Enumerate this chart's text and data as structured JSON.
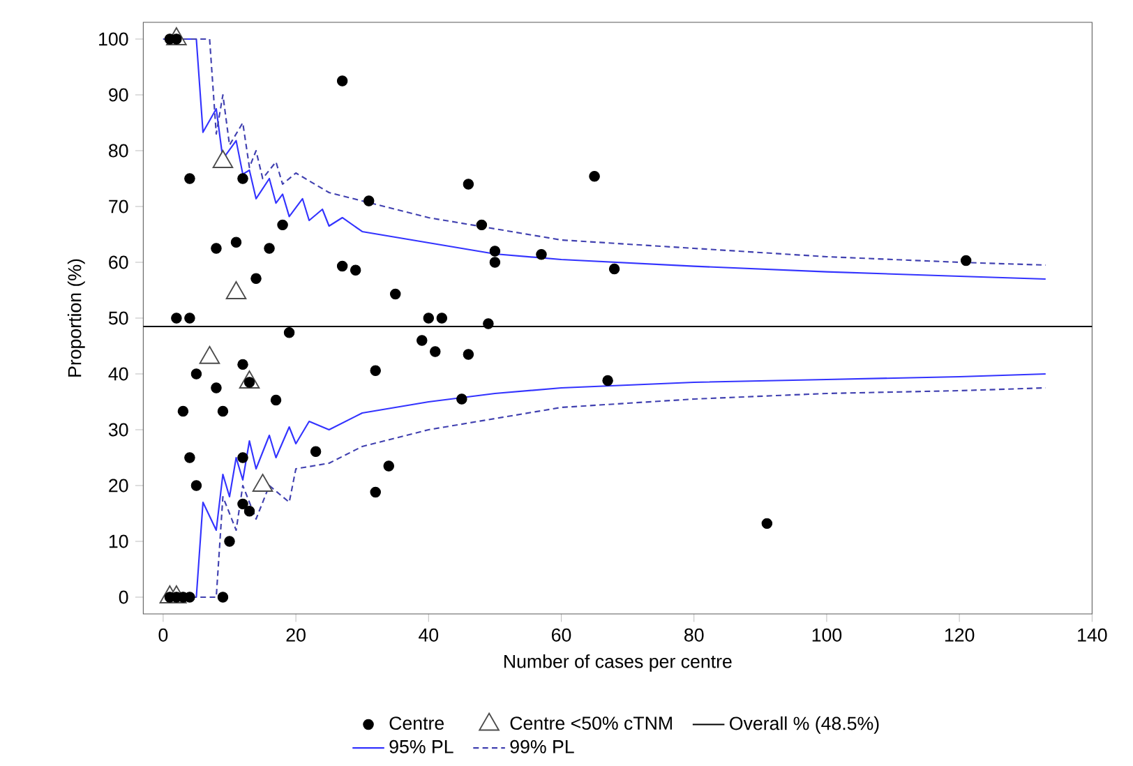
{
  "chart_data": {
    "type": "scatter",
    "xlabel": "Number of cases per centre",
    "ylabel": "Proportion (%)",
    "xlim": [
      -3,
      140
    ],
    "ylim": [
      -3,
      103
    ],
    "xticks": [
      0,
      20,
      40,
      60,
      80,
      100,
      120,
      140
    ],
    "yticks": [
      0,
      10,
      20,
      30,
      40,
      50,
      60,
      70,
      80,
      90,
      100
    ],
    "grid": false,
    "legend": "bottom",
    "ref_lines": [
      {
        "axis": "y",
        "value": 48.5,
        "label": "Overall % (48.5%)",
        "color": "#000000",
        "line_style": "solid"
      }
    ],
    "series": [
      {
        "name": "Centre",
        "marker": "circle",
        "color": "#000000",
        "x": [
          1,
          2,
          27,
          4,
          12,
          46,
          65,
          31,
          48,
          18,
          8,
          11,
          16,
          14,
          27,
          29,
          35,
          50,
          50,
          57,
          68,
          121,
          2,
          4,
          40,
          42,
          49,
          19,
          39,
          41,
          46,
          67,
          45,
          5,
          12,
          8,
          13,
          17,
          3,
          9,
          32,
          4,
          12,
          23,
          5,
          12,
          13,
          10,
          34,
          32,
          91,
          9,
          1,
          2,
          3,
          4
        ],
        "values": [
          100,
          100,
          92.5,
          75,
          75,
          74,
          75.4,
          71,
          66.7,
          66.7,
          62.5,
          63.6,
          62.5,
          57.1,
          59.3,
          58.6,
          54.3,
          62,
          60,
          61.4,
          58.8,
          60.3,
          50,
          50,
          50,
          50,
          49,
          47.4,
          46,
          44,
          43.5,
          38.8,
          35.5,
          40,
          41.7,
          37.5,
          38.5,
          35.3,
          33.3,
          33.3,
          40.6,
          25,
          25,
          26.1,
          20,
          16.7,
          15.4,
          10,
          23.5,
          18.8,
          13.2,
          0,
          0,
          0,
          0,
          0
        ]
      },
      {
        "name": "Centre <50% cTNM",
        "marker": "triangle",
        "color": "#4c4c4c",
        "x": [
          2,
          9,
          11,
          7,
          13,
          15,
          1,
          2
        ],
        "values": [
          100,
          78,
          54.5,
          42.9,
          38.5,
          20,
          0,
          0
        ]
      },
      {
        "name": "95% PL",
        "type": "line",
        "marker": "none",
        "line_style": "solid",
        "color": "#3333ff",
        "x": [
          0,
          5,
          6,
          8,
          9,
          11,
          12,
          13,
          14,
          16,
          17,
          18,
          19,
          21,
          22,
          24,
          25,
          27,
          30,
          35,
          40,
          50,
          60,
          80,
          100,
          120,
          133
        ],
        "values": [
          100,
          100,
          83.3,
          87.5,
          78.5,
          81.8,
          75.8,
          76.5,
          71.4,
          75,
          70.6,
          72.2,
          68.2,
          71.4,
          67.5,
          69.5,
          66.5,
          68,
          65.5,
          64.5,
          63.5,
          61.5,
          60.5,
          59.3,
          58.3,
          57.5,
          57
        ]
      },
      {
        "type": "line",
        "marker": "none",
        "line_style": "solid",
        "color": "#3333ff",
        "x": [
          0,
          5,
          6,
          8,
          9,
          10,
          11,
          12,
          13,
          14,
          16,
          17,
          19,
          20,
          22,
          25,
          30,
          35,
          40,
          50,
          60,
          70,
          80,
          100,
          120,
          133
        ],
        "values": [
          0,
          0,
          17,
          12,
          22,
          18,
          25,
          21,
          28,
          23,
          29,
          25,
          30.5,
          27.5,
          31.5,
          30,
          33,
          34,
          35,
          36.5,
          37.5,
          38,
          38.5,
          39,
          39.5,
          40
        ]
      },
      {
        "name": "99% PL",
        "type": "line",
        "marker": "none",
        "line_style": "dashed",
        "color": "#4040b0",
        "x": [
          0,
          7,
          8,
          9,
          10,
          12,
          13,
          14,
          15,
          17,
          18,
          20,
          25,
          30,
          40,
          50,
          60,
          80,
          100,
          120,
          133
        ],
        "values": [
          100,
          100,
          83,
          90,
          81,
          85,
          77,
          80,
          75,
          78,
          74,
          76,
          72.5,
          71,
          68,
          66,
          64,
          62.5,
          61,
          60,
          59.5
        ]
      },
      {
        "type": "line",
        "marker": "none",
        "line_style": "dashed",
        "color": "#4040b0",
        "x": [
          0,
          8,
          9,
          11,
          12,
          14,
          16,
          19,
          20,
          25,
          30,
          40,
          50,
          60,
          80,
          100,
          120,
          133
        ],
        "values": [
          0,
          0,
          18,
          12,
          20,
          14,
          20,
          17,
          23,
          24,
          27,
          30,
          32,
          34,
          35.5,
          36.5,
          37,
          37.5
        ]
      }
    ]
  }
}
